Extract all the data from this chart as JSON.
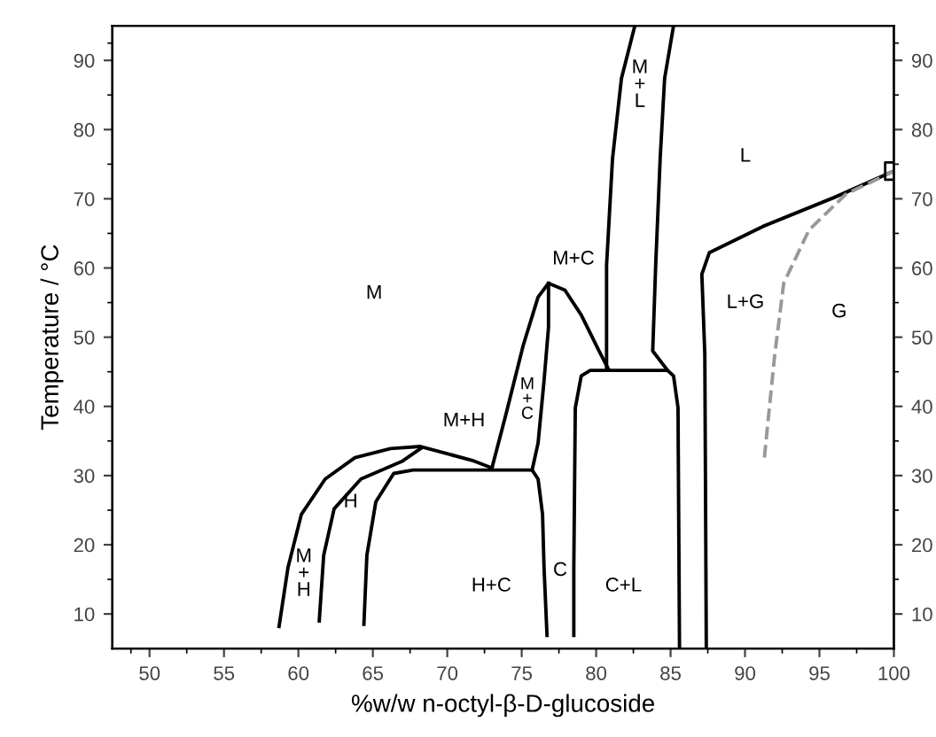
{
  "chart_data": {
    "type": "line",
    "xlabel": "%w/w n-octyl-β-D-glucoside",
    "ylabel": "Temperature / °C",
    "xlim": [
      47.5,
      100
    ],
    "ylim": [
      5,
      95
    ],
    "xticks": [
      50,
      55,
      60,
      65,
      70,
      75,
      80,
      85,
      90,
      95,
      100
    ],
    "yticks": [
      10,
      20,
      30,
      40,
      50,
      60,
      70,
      80,
      90
    ],
    "y2lim": [
      5,
      95
    ],
    "y2ticks": [
      10,
      20,
      30,
      40,
      50,
      60,
      70,
      80,
      90
    ],
    "grid": false,
    "legend": false,
    "series": [
      {
        "color": "#000000",
        "line_style": "solid",
        "x": [
          58.7,
          59.3,
          60.2,
          61.8,
          63.8,
          66.2,
          68.2,
          70.1,
          71.8,
          73.0
        ],
        "values": [
          8.2,
          16.7,
          24.4,
          29.5,
          32.6,
          33.9,
          34.2,
          33.1,
          32.1,
          31.1
        ]
      },
      {
        "color": "#000000",
        "line_style": "solid",
        "x": [
          61.4,
          61.7,
          62.4,
          64.2,
          67.0,
          68.2
        ],
        "values": [
          9.0,
          18.5,
          25.2,
          29.5,
          32.1,
          33.9
        ]
      },
      {
        "color": "#000000",
        "line_style": "solid",
        "x": [
          64.4,
          64.6,
          65.2,
          66.4,
          67.7,
          75.7,
          76.1,
          76.4,
          76.5,
          76.7
        ],
        "values": [
          8.5,
          18.5,
          26.2,
          30.3,
          30.8,
          30.8,
          29.5,
          24.4,
          16.7,
          6.9
        ]
      },
      {
        "color": "#000000",
        "line_style": "solid",
        "x": [
          73.0,
          73.9,
          75.1,
          76.1,
          76.8,
          77.9,
          79.0,
          80.2,
          80.8
        ],
        "values": [
          31.1,
          38.5,
          48.8,
          55.8,
          57.8,
          56.8,
          53.2,
          48.0,
          45.5
        ]
      },
      {
        "color": "#000000",
        "line_style": "solid",
        "x": [
          76.8,
          76.8,
          76.5,
          76.1,
          75.7
        ],
        "values": [
          57.8,
          51.4,
          43.7,
          34.7,
          30.8
        ]
      },
      {
        "color": "#000000",
        "line_style": "solid",
        "x": [
          78.5,
          78.5,
          78.6,
          79.0,
          79.6,
          84.8,
          85.2,
          85.5,
          85.6
        ],
        "values": [
          6.9,
          16.7,
          39.8,
          44.4,
          45.2,
          45.2,
          44.4,
          39.8,
          5.1
        ]
      },
      {
        "color": "#000000",
        "line_style": "solid",
        "x": [
          80.7,
          80.7,
          81.1,
          81.7,
          82.6
        ],
        "values": [
          45.5,
          60.4,
          75.8,
          87.4,
          95
        ]
      },
      {
        "color": "#000000",
        "line_style": "solid",
        "x": [
          84.8,
          83.8,
          84.0,
          84.3,
          84.6,
          85.2
        ],
        "values": [
          45.2,
          48.0,
          60.4,
          75.8,
          87.4,
          95
        ]
      },
      {
        "color": "#000000",
        "line_style": "solid",
        "x": [
          87.4,
          87.3,
          87.1,
          87.6,
          91.2,
          96.0,
          100
        ],
        "values": [
          5.1,
          47.5,
          59.1,
          62.2,
          66.0,
          70.2,
          74.0
        ]
      },
      {
        "color": "#999999",
        "line_style": "dashed",
        "x": [
          91.3,
          92.0,
          92.6,
          94.3,
          96.8,
          100
        ],
        "values": [
          32.6,
          47.5,
          57.8,
          65.5,
          70.7,
          74.0
        ]
      },
      {
        "type": "scatter",
        "color": "#000000",
        "marker": "square",
        "x": [
          100
        ],
        "values": [
          74.0
        ]
      }
    ],
    "annotations": [
      "M",
      "L",
      "G",
      "L+G",
      "M+C",
      "M\n+\nC",
      "M+H",
      "H",
      "M\n+\nH",
      "H+C",
      "C",
      "C+L",
      "M\n+\nL"
    ]
  }
}
